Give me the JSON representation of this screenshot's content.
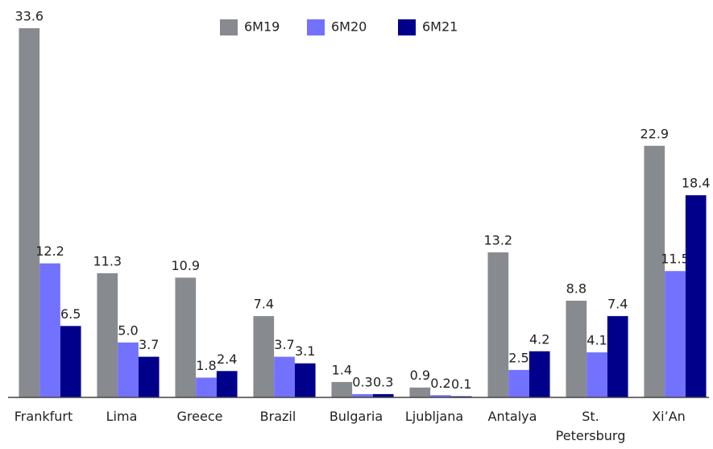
{
  "chart_data": {
    "type": "bar",
    "categories": [
      "Frankfurt",
      "Lima",
      "Greece",
      "Brazil",
      "Bulgaria",
      "Ljubljana",
      "Antalya",
      "St. Petersburg",
      "Xi’An"
    ],
    "series": [
      {
        "name": "6M19",
        "color": "#878a8f",
        "values": [
          33.6,
          11.3,
          10.9,
          7.4,
          1.4,
          0.9,
          13.2,
          8.8,
          22.9
        ],
        "value_labels": [
          "33.6",
          "11.3",
          "10.9",
          "7.4",
          "1.4",
          "0.9",
          "13.2",
          "8.8",
          "22.9"
        ]
      },
      {
        "name": "6M20",
        "color": "#7272ff",
        "values": [
          12.2,
          5.0,
          1.8,
          3.7,
          0.3,
          0.2,
          2.5,
          4.1,
          11.5
        ],
        "value_labels": [
          "12.2",
          "5.0",
          "1.8",
          "3.7",
          "0.3",
          "0.2",
          "2.5",
          "4.1",
          "11.5"
        ]
      },
      {
        "name": "6M21",
        "color": "#00008b",
        "values": [
          6.5,
          3.7,
          2.4,
          3.1,
          0.3,
          0.1,
          4.2,
          7.4,
          18.4
        ],
        "value_labels": [
          "6.5",
          "3.7",
          "2.4",
          "3.1",
          "0.3",
          "0.1",
          "4.2",
          "7.4",
          "18.4"
        ]
      }
    ],
    "legend": "top"
  }
}
